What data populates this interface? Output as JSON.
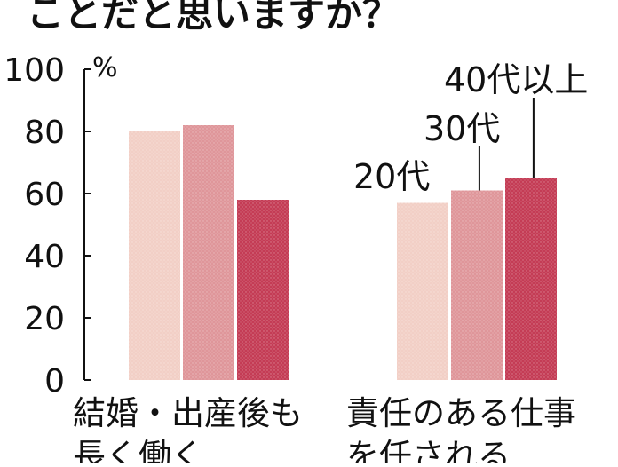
{
  "chart_data": {
    "type": "bar",
    "title": "ことだと思いますか？",
    "unit": "%",
    "ylim": [
      0,
      100
    ],
    "yticks": [
      0,
      20,
      40,
      60,
      80,
      100
    ],
    "categories": [
      {
        "lines": [
          "結婚・出産後も",
          "長く働く"
        ]
      },
      {
        "lines": [
          "責任のある仕事",
          "を任される"
        ]
      }
    ],
    "series": [
      {
        "name": "20代",
        "values": [
          80,
          57
        ],
        "color": "#f2cfc6"
      },
      {
        "name": "30代",
        "values": [
          82,
          61
        ],
        "color": "#df969a"
      },
      {
        "name": "40代以上",
        "values": [
          58,
          65
        ],
        "color": "#c43c55"
      }
    ],
    "legend_placement": "in-plot callouts above second group"
  }
}
